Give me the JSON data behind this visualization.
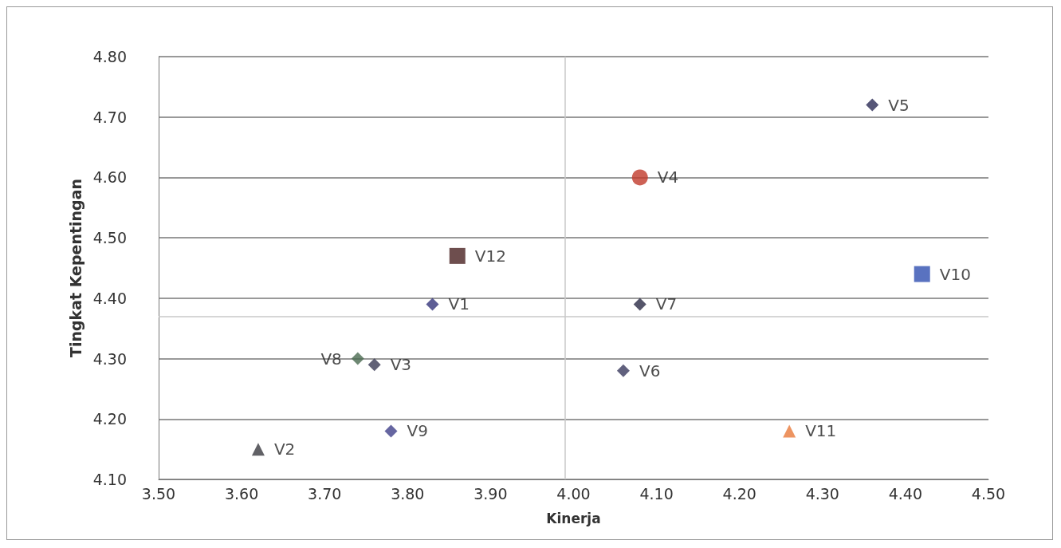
{
  "chart_data": {
    "type": "scatter",
    "xlabel": "Kinerja",
    "ylabel": "Tingkat Kepentingan",
    "xlim": [
      3.5,
      4.5
    ],
    "xticks": [
      {
        "value": 3.5,
        "label": "3.50"
      },
      {
        "value": 3.6,
        "label": "3.60"
      },
      {
        "value": 3.7,
        "label": "3.70"
      },
      {
        "value": 3.8,
        "label": "3.80"
      },
      {
        "value": 3.9,
        "label": "3.90"
      },
      {
        "value": 4.0,
        "label": "4.00"
      },
      {
        "value": 4.1,
        "label": "4.10"
      },
      {
        "value": 4.2,
        "label": "4.20"
      },
      {
        "value": 4.3,
        "label": "4.30"
      },
      {
        "value": 4.4,
        "label": "4.40"
      },
      {
        "value": 4.5,
        "label": "4.50"
      }
    ],
    "ylim": [
      4.1,
      4.8
    ],
    "yticks": [
      {
        "value": 4.1,
        "label": "4.10"
      },
      {
        "value": 4.2,
        "label": "4.20"
      },
      {
        "value": 4.3,
        "label": "4.30"
      },
      {
        "value": 4.4,
        "label": "4.40"
      },
      {
        "value": 4.5,
        "label": "4.50"
      },
      {
        "value": 4.6,
        "label": "4.60"
      },
      {
        "value": 4.7,
        "label": "4.70"
      },
      {
        "value": 4.8,
        "label": "4.80"
      }
    ],
    "grid": "y",
    "legend": false,
    "ref_lines": [
      {
        "axis": "x",
        "value": 3.99,
        "color": "#c8c8c8"
      },
      {
        "axis": "y",
        "value": 4.37,
        "color": "#c8c8c8"
      }
    ],
    "series": [
      {
        "name": "V1",
        "color": "#35357a",
        "marker": "diamond",
        "x": [
          3.83
        ],
        "values": [
          4.39
        ]
      },
      {
        "name": "V2",
        "color": "#3a3a40",
        "marker": "triangle",
        "x": [
          3.62
        ],
        "values": [
          4.15
        ]
      },
      {
        "name": "V3",
        "color": "#3a3a55",
        "marker": "diamond",
        "x": [
          3.76
        ],
        "values": [
          4.29
        ]
      },
      {
        "name": "V4",
        "color": "#c0392b",
        "marker": "circle",
        "x": [
          4.08
        ],
        "values": [
          4.6
        ]
      },
      {
        "name": "V5",
        "color": "#2a2a55",
        "marker": "diamond",
        "x": [
          4.36
        ],
        "values": [
          4.72
        ]
      },
      {
        "name": "V6",
        "color": "#3a3a5e",
        "marker": "diamond",
        "x": [
          4.06
        ],
        "values": [
          4.28
        ]
      },
      {
        "name": "V7",
        "color": "#2a2a45",
        "marker": "diamond",
        "x": [
          4.08
        ],
        "values": [
          4.39
        ]
      },
      {
        "name": "V8",
        "color": "#4a6a50",
        "marker": "diamond",
        "x": [
          3.74
        ],
        "values": [
          4.3
        ]
      },
      {
        "name": "V9",
        "color": "#40408a",
        "marker": "diamond",
        "x": [
          3.78
        ],
        "values": [
          4.18
        ]
      },
      {
        "name": "V10",
        "color": "#2f4fb0",
        "marker": "square",
        "x": [
          4.42
        ],
        "values": [
          4.44
        ]
      },
      {
        "name": "V11",
        "color": "#e8793a",
        "marker": "triangle",
        "x": [
          4.26
        ],
        "values": [
          4.18
        ]
      },
      {
        "name": "V12",
        "color": "#4a2222",
        "marker": "square",
        "x": [
          3.86
        ],
        "values": [
          4.47
        ]
      }
    ]
  }
}
